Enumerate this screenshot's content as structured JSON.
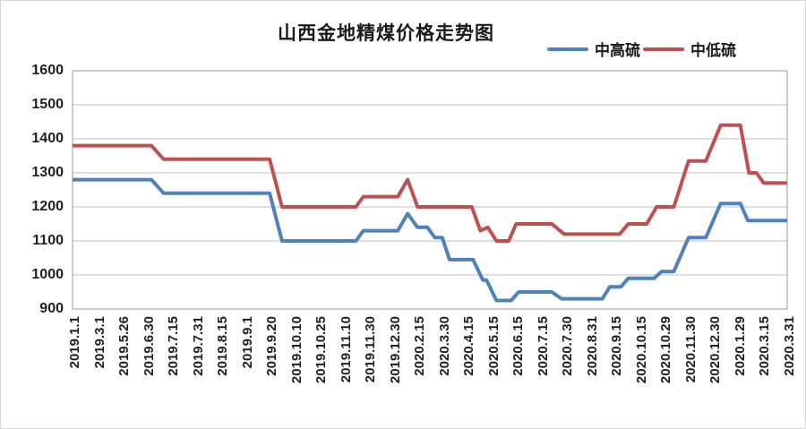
{
  "page": {
    "background": "#ffffff",
    "border_color": "#d6d6d6"
  },
  "chart_data": {
    "type": "line",
    "title": "山西金地精煤价格走势图",
    "xlabel": "",
    "ylabel": "",
    "ylim": [
      900,
      1600
    ],
    "yticks": [
      1600,
      1500,
      1400,
      1300,
      1200,
      1100,
      1000,
      900
    ],
    "grid": "horizontal",
    "legend_position": "top-right",
    "gridline_color": "#bfbfbf",
    "frame_color": "#a9a9a9",
    "axis_text_color": "#1f1f1f",
    "categories": [
      "2019.1.1",
      "2019.3.1",
      "2019.5.26",
      "2019.6.30",
      "2019.7.15",
      "2019.7.31",
      "2019.8.15",
      "2019.9.1",
      "2019.9.20",
      "2019.10.10",
      "2019.10.25",
      "2019.11.10",
      "2019.11.30",
      "2019.12.30",
      "2020.2.15",
      "2020.3.30",
      "2020.4.15",
      "2020.5.15",
      "2020.6.15",
      "2020.7.15",
      "2020.7.30",
      "2020.8.31",
      "2020.9.15",
      "2020.10.15",
      "2020.10.29",
      "2020.11.30",
      "2020.12.30",
      "2020.1.29",
      "2020.3.15",
      "2020.3.31"
    ],
    "series": [
      {
        "name": "中高硫",
        "color": "#4f81bd",
        "values": [
          1280,
          1280,
          1280,
          1280,
          1240,
          1240,
          1240,
          1240,
          1240,
          1100,
          1100,
          1100,
          1130,
          1130,
          1140,
          1110,
          1045,
          925,
          950,
          950,
          930,
          930,
          965,
          990,
          1010,
          1110,
          1210,
          1210,
          1160,
          1160
        ],
        "render_points": [
          [
            0,
            1280
          ],
          [
            3.2,
            1280
          ],
          [
            3.7,
            1240
          ],
          [
            8,
            1240
          ],
          [
            8.5,
            1100
          ],
          [
            11.5,
            1100
          ],
          [
            11.8,
            1130
          ],
          [
            13.2,
            1130
          ],
          [
            13.6,
            1180
          ],
          [
            14,
            1140
          ],
          [
            14.4,
            1140
          ],
          [
            14.7,
            1110
          ],
          [
            15,
            1110
          ],
          [
            15.3,
            1045
          ],
          [
            16.25,
            1045
          ],
          [
            16.65,
            985
          ],
          [
            16.8,
            985
          ],
          [
            17.2,
            925
          ],
          [
            17.8,
            925
          ],
          [
            18.1,
            950
          ],
          [
            19.45,
            950
          ],
          [
            19.85,
            930
          ],
          [
            21.5,
            930
          ],
          [
            21.8,
            965
          ],
          [
            22.25,
            965
          ],
          [
            22.55,
            990
          ],
          [
            23.6,
            990
          ],
          [
            23.9,
            1010
          ],
          [
            24.4,
            1010
          ],
          [
            25,
            1110
          ],
          [
            25.7,
            1110
          ],
          [
            26.3,
            1210
          ],
          [
            27.1,
            1210
          ],
          [
            27.4,
            1160
          ],
          [
            29,
            1160
          ]
        ]
      },
      {
        "name": "中低硫",
        "color": "#c0504d",
        "values": [
          1380,
          1380,
          1380,
          1380,
          1340,
          1340,
          1340,
          1340,
          1340,
          1200,
          1200,
          1200,
          1230,
          1230,
          1200,
          1200,
          1200,
          1140,
          1150,
          1150,
          1120,
          1120,
          1120,
          1150,
          1200,
          1335,
          1440,
          1440,
          1270,
          1270
        ],
        "render_points": [
          [
            0,
            1380
          ],
          [
            3.2,
            1380
          ],
          [
            3.7,
            1340
          ],
          [
            8,
            1340
          ],
          [
            8.5,
            1200
          ],
          [
            11.5,
            1200
          ],
          [
            11.8,
            1230
          ],
          [
            13.2,
            1230
          ],
          [
            13.6,
            1280
          ],
          [
            14,
            1200
          ],
          [
            16.2,
            1200
          ],
          [
            16.55,
            1130
          ],
          [
            16.85,
            1140
          ],
          [
            17.2,
            1100
          ],
          [
            17.7,
            1100
          ],
          [
            18,
            1150
          ],
          [
            19.45,
            1150
          ],
          [
            19.95,
            1120
          ],
          [
            22.2,
            1120
          ],
          [
            22.55,
            1150
          ],
          [
            23.3,
            1150
          ],
          [
            23.7,
            1200
          ],
          [
            24.4,
            1200
          ],
          [
            25,
            1335
          ],
          [
            25.7,
            1335
          ],
          [
            26.3,
            1440
          ],
          [
            27.1,
            1440
          ],
          [
            27.45,
            1300
          ],
          [
            27.75,
            1300
          ],
          [
            28.05,
            1270
          ],
          [
            29,
            1270
          ]
        ]
      }
    ]
  }
}
